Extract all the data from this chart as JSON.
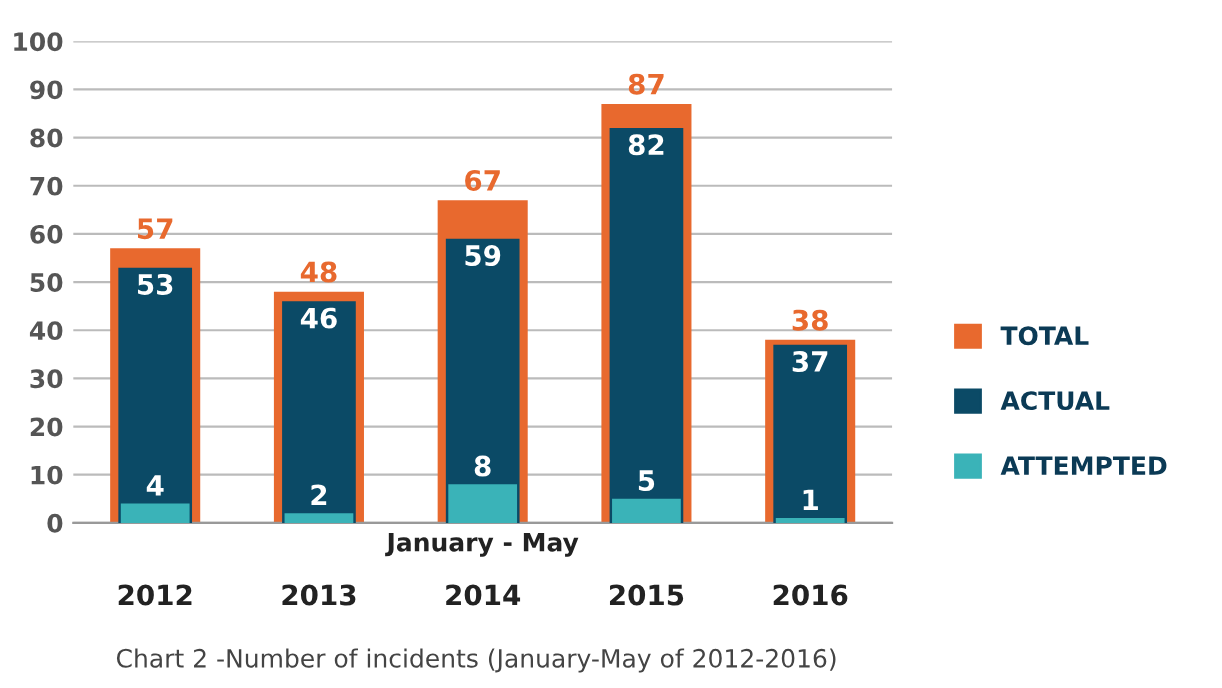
{
  "chart_data": {
    "type": "bar",
    "categories": [
      "2012",
      "2013",
      "2014",
      "2015",
      "2016"
    ],
    "series": [
      {
        "name": "TOTAL",
        "color": "#e8692e",
        "values": [
          57,
          48,
          67,
          87,
          38
        ]
      },
      {
        "name": "ACTUAL",
        "color": "#0b4a66",
        "values": [
          53,
          46,
          59,
          82,
          37
        ]
      },
      {
        "name": "ATTEMPTED",
        "color": "#3ab3b8",
        "values": [
          4,
          2,
          8,
          5,
          1
        ]
      }
    ],
    "ylim": [
      0,
      100
    ],
    "yticks": [
      0,
      10,
      20,
      30,
      40,
      50,
      60,
      70,
      80,
      90,
      100
    ],
    "grid": "y",
    "legend": "right",
    "data_labels": true,
    "annotations": [
      "January - May",
      "Chart 2 -Number of incidents (January-May of 2012-2016)"
    ]
  }
}
